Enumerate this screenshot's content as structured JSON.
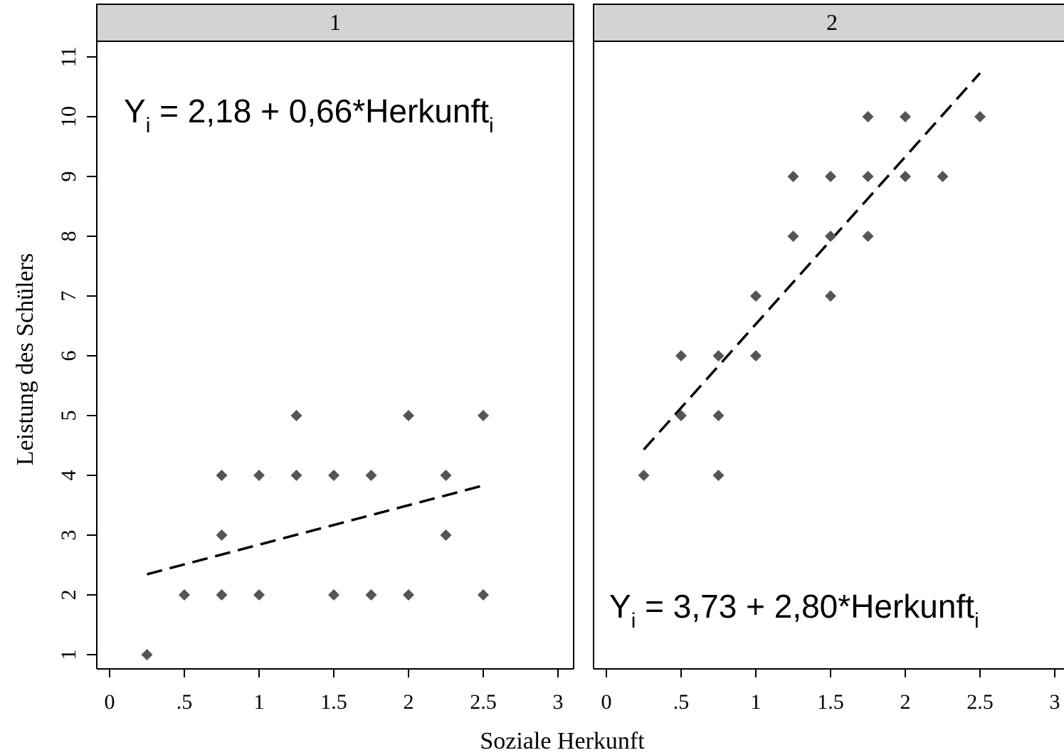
{
  "chart_data": {
    "type": "scatter",
    "xlabel": "Soziale Herkunft",
    "ylabel": "Leistung des Schülers",
    "xlim": [
      0,
      3
    ],
    "ylim": [
      1,
      11
    ],
    "x_ticks": [
      {
        "v": 0,
        "label": "0"
      },
      {
        "v": 0.5,
        "label": ".5"
      },
      {
        "v": 1,
        "label": "1"
      },
      {
        "v": 1.5,
        "label": "1.5"
      },
      {
        "v": 2,
        "label": "2"
      },
      {
        "v": 2.5,
        "label": "2.5"
      },
      {
        "v": 3,
        "label": "3"
      }
    ],
    "y_ticks": [
      {
        "v": 1,
        "label": "1"
      },
      {
        "v": 2,
        "label": "2"
      },
      {
        "v": 3,
        "label": "3"
      },
      {
        "v": 4,
        "label": "4"
      },
      {
        "v": 5,
        "label": "5"
      },
      {
        "v": 6,
        "label": "6"
      },
      {
        "v": 7,
        "label": "7"
      },
      {
        "v": 8,
        "label": "8"
      },
      {
        "v": 9,
        "label": "9"
      },
      {
        "v": 10,
        "label": "10"
      },
      {
        "v": 11,
        "label": "11"
      }
    ],
    "grid": false,
    "marker_color": "#555555",
    "strip_color": "#d3d3d3",
    "panels": [
      {
        "strip_label": "1",
        "equation": {
          "a": "Y",
          "b": "i",
          "c": " = 2,18 + 0,66*Herkunft",
          "d": "i"
        },
        "equation_placement": "top-left",
        "points": [
          [
            0.25,
            1
          ],
          [
            0.5,
            2
          ],
          [
            0.75,
            2
          ],
          [
            0.75,
            3
          ],
          [
            0.75,
            4
          ],
          [
            1,
            2
          ],
          [
            1,
            4
          ],
          [
            1.25,
            4
          ],
          [
            1.25,
            5
          ],
          [
            1.5,
            2
          ],
          [
            1.5,
            4
          ],
          [
            1.75,
            2
          ],
          [
            1.75,
            4
          ],
          [
            2,
            2
          ],
          [
            2,
            5
          ],
          [
            2.25,
            3
          ],
          [
            2.25,
            4
          ],
          [
            2.5,
            2
          ],
          [
            2.5,
            5
          ]
        ],
        "fit": {
          "intercept": 2.18,
          "slope": 0.66,
          "x_range": [
            0.25,
            2.5
          ]
        }
      },
      {
        "strip_label": "2",
        "equation": {
          "a": "Y",
          "b": "i",
          "c": " = 3,73 + 2,80*Herkunft",
          "d": "i"
        },
        "equation_placement": "bottom-left",
        "points": [
          [
            0.25,
            4
          ],
          [
            0.5,
            5
          ],
          [
            0.5,
            6
          ],
          [
            0.75,
            4
          ],
          [
            0.75,
            5
          ],
          [
            0.75,
            6
          ],
          [
            1,
            6
          ],
          [
            1,
            7
          ],
          [
            1.25,
            8
          ],
          [
            1.25,
            9
          ],
          [
            1.5,
            7
          ],
          [
            1.5,
            8
          ],
          [
            1.5,
            9
          ],
          [
            1.75,
            8
          ],
          [
            1.75,
            9
          ],
          [
            1.75,
            10
          ],
          [
            2,
            9
          ],
          [
            2,
            10
          ],
          [
            2.25,
            9
          ],
          [
            2.5,
            10
          ]
        ],
        "fit": {
          "intercept": 3.73,
          "slope": 2.8,
          "x_range": [
            0.25,
            2.5
          ]
        }
      }
    ]
  }
}
